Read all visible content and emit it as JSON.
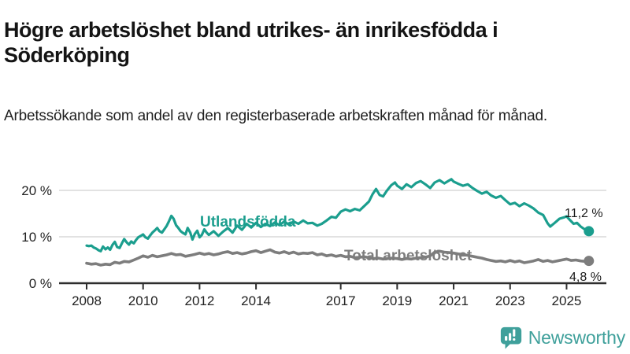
{
  "header": {
    "title": "Högre arbetslöshet bland utrikes- än inrikesfödda i Söderköping",
    "subtitle": "Arbetssökande som andel av den registerbaserade arbetskraften månad för månad."
  },
  "colors": {
    "series_foreign_born": "#1b9e8e",
    "series_total": "#7d7d7d",
    "axis": "#2e2e2e",
    "gridline": "#e2e2e2",
    "tick_text": "#222222",
    "value_text": "#1a1a1a",
    "brand": "#3fa09b"
  },
  "footer": {
    "brand": "Newsworthy",
    "logo_icon": "speech-bubble-bar-chart-icon"
  },
  "chart_data": {
    "type": "line",
    "title": "Högre arbetslöshet bland utrikes- än inrikesfödda i Söderköping",
    "subtitle": "Arbetssökande som andel av den registerbaserade arbetskraften månad för månad.",
    "xlabel": "",
    "ylabel": "",
    "grid": true,
    "x_range": [
      2008,
      2025.83
    ],
    "ylim": [
      0,
      24
    ],
    "x_ticks": [
      2008,
      2010,
      2012,
      2014,
      2017,
      2019,
      2021,
      2023,
      2025
    ],
    "y_ticks": [
      0,
      10,
      20
    ],
    "y_tick_suffix": " %",
    "series": [
      {
        "name": "Utlandsfödda",
        "color": "#1b9e8e",
        "end_label": "11,2 %",
        "end_value": 11.2,
        "points": [
          [
            2008.0,
            8.1
          ],
          [
            2008.08,
            8.0
          ],
          [
            2008.17,
            8.1
          ],
          [
            2008.25,
            7.7
          ],
          [
            2008.33,
            7.5
          ],
          [
            2008.42,
            7.1
          ],
          [
            2008.5,
            6.9
          ],
          [
            2008.58,
            7.9
          ],
          [
            2008.67,
            7.3
          ],
          [
            2008.75,
            7.7
          ],
          [
            2008.83,
            7.2
          ],
          [
            2008.92,
            8.3
          ],
          [
            2009.0,
            8.9
          ],
          [
            2009.08,
            7.8
          ],
          [
            2009.17,
            7.6
          ],
          [
            2009.25,
            8.6
          ],
          [
            2009.33,
            9.5
          ],
          [
            2009.42,
            8.8
          ],
          [
            2009.5,
            8.3
          ],
          [
            2009.58,
            9.0
          ],
          [
            2009.67,
            8.6
          ],
          [
            2009.75,
            9.3
          ],
          [
            2009.83,
            9.9
          ],
          [
            2009.92,
            10.2
          ],
          [
            2010.0,
            10.5
          ],
          [
            2010.08,
            9.9
          ],
          [
            2010.17,
            9.6
          ],
          [
            2010.25,
            10.3
          ],
          [
            2010.33,
            10.9
          ],
          [
            2010.42,
            11.4
          ],
          [
            2010.5,
            11.9
          ],
          [
            2010.58,
            11.2
          ],
          [
            2010.67,
            10.9
          ],
          [
            2010.75,
            11.6
          ],
          [
            2010.83,
            12.3
          ],
          [
            2010.92,
            13.4
          ],
          [
            2011.0,
            14.5
          ],
          [
            2011.08,
            13.9
          ],
          [
            2011.17,
            12.5
          ],
          [
            2011.25,
            11.9
          ],
          [
            2011.33,
            11.2
          ],
          [
            2011.42,
            10.8
          ],
          [
            2011.5,
            10.5
          ],
          [
            2011.58,
            11.9
          ],
          [
            2011.67,
            10.9
          ],
          [
            2011.75,
            9.4
          ],
          [
            2011.83,
            10.6
          ],
          [
            2011.92,
            11.3
          ],
          [
            2012.0,
            9.9
          ],
          [
            2012.08,
            10.4
          ],
          [
            2012.17,
            11.6
          ],
          [
            2012.25,
            10.9
          ],
          [
            2012.33,
            10.4
          ],
          [
            2012.5,
            11.2
          ],
          [
            2012.67,
            10.2
          ],
          [
            2012.83,
            11.1
          ],
          [
            2013.0,
            11.9
          ],
          [
            2013.17,
            10.9
          ],
          [
            2013.33,
            12.4
          ],
          [
            2013.5,
            11.5
          ],
          [
            2013.67,
            12.8
          ],
          [
            2013.83,
            12.0
          ],
          [
            2014.0,
            13.0
          ],
          [
            2014.17,
            12.1
          ],
          [
            2014.33,
            12.8
          ],
          [
            2014.5,
            12.3
          ],
          [
            2014.67,
            13.1
          ],
          [
            2014.83,
            12.5
          ],
          [
            2015.0,
            13.3
          ],
          [
            2015.17,
            12.6
          ],
          [
            2015.33,
            13.3
          ],
          [
            2015.5,
            12.8
          ],
          [
            2015.67,
            13.5
          ],
          [
            2015.83,
            12.9
          ],
          [
            2016.0,
            13.0
          ],
          [
            2016.17,
            12.4
          ],
          [
            2016.33,
            12.8
          ],
          [
            2016.5,
            13.5
          ],
          [
            2016.67,
            14.3
          ],
          [
            2016.83,
            14.1
          ],
          [
            2017.0,
            15.4
          ],
          [
            2017.17,
            15.9
          ],
          [
            2017.33,
            15.5
          ],
          [
            2017.5,
            16.0
          ],
          [
            2017.67,
            15.7
          ],
          [
            2017.83,
            16.6
          ],
          [
            2018.0,
            17.6
          ],
          [
            2018.13,
            19.2
          ],
          [
            2018.25,
            20.3
          ],
          [
            2018.38,
            19.0
          ],
          [
            2018.5,
            18.7
          ],
          [
            2018.63,
            19.9
          ],
          [
            2018.79,
            21.1
          ],
          [
            2018.92,
            21.7
          ],
          [
            2019.0,
            21.0
          ],
          [
            2019.17,
            20.3
          ],
          [
            2019.33,
            21.3
          ],
          [
            2019.5,
            20.7
          ],
          [
            2019.67,
            21.6
          ],
          [
            2019.83,
            22.0
          ],
          [
            2020.0,
            21.3
          ],
          [
            2020.17,
            20.5
          ],
          [
            2020.33,
            21.7
          ],
          [
            2020.5,
            22.2
          ],
          [
            2020.67,
            21.5
          ],
          [
            2020.83,
            22.1
          ],
          [
            2020.92,
            22.4
          ],
          [
            2021.0,
            21.9
          ],
          [
            2021.17,
            21.4
          ],
          [
            2021.33,
            21.0
          ],
          [
            2021.5,
            21.3
          ],
          [
            2021.67,
            20.5
          ],
          [
            2021.83,
            19.9
          ],
          [
            2022.0,
            19.3
          ],
          [
            2022.17,
            19.7
          ],
          [
            2022.33,
            18.9
          ],
          [
            2022.5,
            18.4
          ],
          [
            2022.67,
            18.8
          ],
          [
            2022.83,
            17.9
          ],
          [
            2023.0,
            17.0
          ],
          [
            2023.17,
            17.3
          ],
          [
            2023.33,
            16.6
          ],
          [
            2023.5,
            17.2
          ],
          [
            2023.67,
            16.7
          ],
          [
            2023.83,
            16.1
          ],
          [
            2024.0,
            15.2
          ],
          [
            2024.17,
            14.7
          ],
          [
            2024.33,
            12.9
          ],
          [
            2024.42,
            12.2
          ],
          [
            2024.58,
            13.0
          ],
          [
            2024.75,
            13.9
          ],
          [
            2024.92,
            14.2
          ],
          [
            2025.0,
            14.4
          ],
          [
            2025.12,
            13.6
          ],
          [
            2025.25,
            12.8
          ],
          [
            2025.37,
            13.0
          ],
          [
            2025.5,
            12.2
          ],
          [
            2025.62,
            11.7
          ],
          [
            2025.71,
            11.4
          ],
          [
            2025.79,
            11.2
          ]
        ]
      },
      {
        "name": "Total arbetslöshet",
        "color": "#7d7d7d",
        "end_label": "4,8 %",
        "end_value": 4.8,
        "points": [
          [
            2008.0,
            4.3
          ],
          [
            2008.17,
            4.1
          ],
          [
            2008.33,
            4.2
          ],
          [
            2008.5,
            3.9
          ],
          [
            2008.67,
            4.1
          ],
          [
            2008.83,
            4.0
          ],
          [
            2009.0,
            4.5
          ],
          [
            2009.17,
            4.3
          ],
          [
            2009.33,
            4.7
          ],
          [
            2009.5,
            4.6
          ],
          [
            2009.67,
            5.0
          ],
          [
            2009.83,
            5.4
          ],
          [
            2010.0,
            5.9
          ],
          [
            2010.17,
            5.6
          ],
          [
            2010.33,
            6.0
          ],
          [
            2010.5,
            5.7
          ],
          [
            2010.67,
            5.9
          ],
          [
            2010.83,
            6.1
          ],
          [
            2011.0,
            6.4
          ],
          [
            2011.17,
            6.1
          ],
          [
            2011.33,
            6.2
          ],
          [
            2011.5,
            5.8
          ],
          [
            2011.67,
            6.0
          ],
          [
            2011.83,
            6.2
          ],
          [
            2012.0,
            6.5
          ],
          [
            2012.17,
            6.2
          ],
          [
            2012.33,
            6.4
          ],
          [
            2012.5,
            6.1
          ],
          [
            2012.67,
            6.3
          ],
          [
            2012.83,
            6.6
          ],
          [
            2013.0,
            6.8
          ],
          [
            2013.17,
            6.4
          ],
          [
            2013.33,
            6.6
          ],
          [
            2013.5,
            6.3
          ],
          [
            2013.67,
            6.5
          ],
          [
            2013.83,
            6.8
          ],
          [
            2014.0,
            7.0
          ],
          [
            2014.17,
            6.6
          ],
          [
            2014.33,
            6.9
          ],
          [
            2014.5,
            7.2
          ],
          [
            2014.67,
            6.7
          ],
          [
            2014.83,
            6.5
          ],
          [
            2015.0,
            6.8
          ],
          [
            2015.17,
            6.4
          ],
          [
            2015.33,
            6.7
          ],
          [
            2015.5,
            6.3
          ],
          [
            2015.67,
            6.5
          ],
          [
            2015.83,
            6.4
          ],
          [
            2016.0,
            6.6
          ],
          [
            2016.17,
            6.1
          ],
          [
            2016.33,
            6.3
          ],
          [
            2016.5,
            5.9
          ],
          [
            2016.67,
            6.1
          ],
          [
            2016.83,
            5.8
          ],
          [
            2017.0,
            6.0
          ],
          [
            2017.17,
            5.7
          ],
          [
            2017.33,
            5.8
          ],
          [
            2017.5,
            5.5
          ],
          [
            2017.67,
            5.6
          ],
          [
            2017.83,
            5.7
          ],
          [
            2018.0,
            5.5
          ],
          [
            2018.17,
            5.3
          ],
          [
            2018.33,
            5.4
          ],
          [
            2018.5,
            5.2
          ],
          [
            2018.67,
            5.3
          ],
          [
            2018.83,
            5.4
          ],
          [
            2019.0,
            5.3
          ],
          [
            2019.17,
            5.1
          ],
          [
            2019.33,
            5.3
          ],
          [
            2019.5,
            5.2
          ],
          [
            2019.67,
            5.4
          ],
          [
            2019.83,
            5.5
          ],
          [
            2020.0,
            5.6
          ],
          [
            2020.17,
            5.9
          ],
          [
            2020.33,
            6.7
          ],
          [
            2020.5,
            6.9
          ],
          [
            2020.67,
            6.7
          ],
          [
            2020.83,
            6.6
          ],
          [
            2021.0,
            6.5
          ],
          [
            2021.17,
            6.3
          ],
          [
            2021.33,
            6.2
          ],
          [
            2021.5,
            6.0
          ],
          [
            2021.67,
            5.8
          ],
          [
            2021.83,
            5.6
          ],
          [
            2022.0,
            5.4
          ],
          [
            2022.17,
            5.1
          ],
          [
            2022.33,
            4.9
          ],
          [
            2022.5,
            4.7
          ],
          [
            2022.67,
            4.8
          ],
          [
            2022.83,
            4.6
          ],
          [
            2023.0,
            4.9
          ],
          [
            2023.17,
            4.6
          ],
          [
            2023.33,
            4.8
          ],
          [
            2023.5,
            4.4
          ],
          [
            2023.67,
            4.6
          ],
          [
            2023.83,
            4.8
          ],
          [
            2024.0,
            5.1
          ],
          [
            2024.17,
            4.7
          ],
          [
            2024.33,
            4.9
          ],
          [
            2024.5,
            4.6
          ],
          [
            2024.67,
            4.8
          ],
          [
            2024.83,
            5.0
          ],
          [
            2025.0,
            5.2
          ],
          [
            2025.17,
            4.9
          ],
          [
            2025.33,
            5.0
          ],
          [
            2025.5,
            4.8
          ],
          [
            2025.67,
            4.7
          ],
          [
            2025.79,
            4.8
          ]
        ]
      }
    ],
    "legend_position": "inline-labels"
  }
}
